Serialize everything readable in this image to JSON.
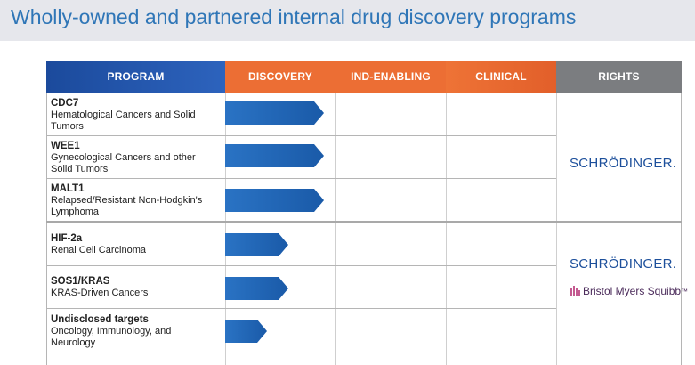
{
  "title": "Wholly-owned and partnered internal drug discovery programs",
  "headers": {
    "program": "PROGRAM",
    "discovery": "DISCOVERY",
    "ind_enabling": "IND-ENABLING",
    "clinical": "CLINICAL",
    "rights": "RIGHTS"
  },
  "programs": [
    {
      "name": "CDC7",
      "desc1": "Hematological Cancers and Solid",
      "desc2": "Tumors",
      "progress": "Discovery (full)"
    },
    {
      "name": "WEE1",
      "desc1": "Gynecological Cancers and other",
      "desc2": "Solid Tumors",
      "progress": "Discovery (full)"
    },
    {
      "name": "MALT1",
      "desc1": "Relapsed/Resistant Non-Hodgkin's",
      "desc2": "Lymphoma",
      "progress": "Discovery (full)"
    },
    {
      "name": "HIF-2a",
      "desc1": "Renal Cell Carcinoma",
      "desc2": "",
      "progress": "Discovery (partial)"
    },
    {
      "name": "SOS1/KRAS",
      "desc1": "KRAS-Driven Cancers",
      "desc2": "",
      "progress": "Discovery (partial)"
    },
    {
      "name": "Undisclosed targets",
      "desc1": "Oncology, Immunology, and",
      "desc2": "Neurology",
      "progress": "Discovery (early)"
    }
  ],
  "rights": {
    "group1": "SCHRÖDINGER.",
    "group2_a": "SCHRÖDINGER.",
    "group2_b": "Bristol Myers Squibb",
    "group2_b_mark": "™"
  },
  "colors": {
    "title": "#2f76b7",
    "program_header": "#1b4a9c",
    "phase_header": "#ec6e34",
    "rights_header": "#7b7d80",
    "arrow": "#1f64b4"
  }
}
